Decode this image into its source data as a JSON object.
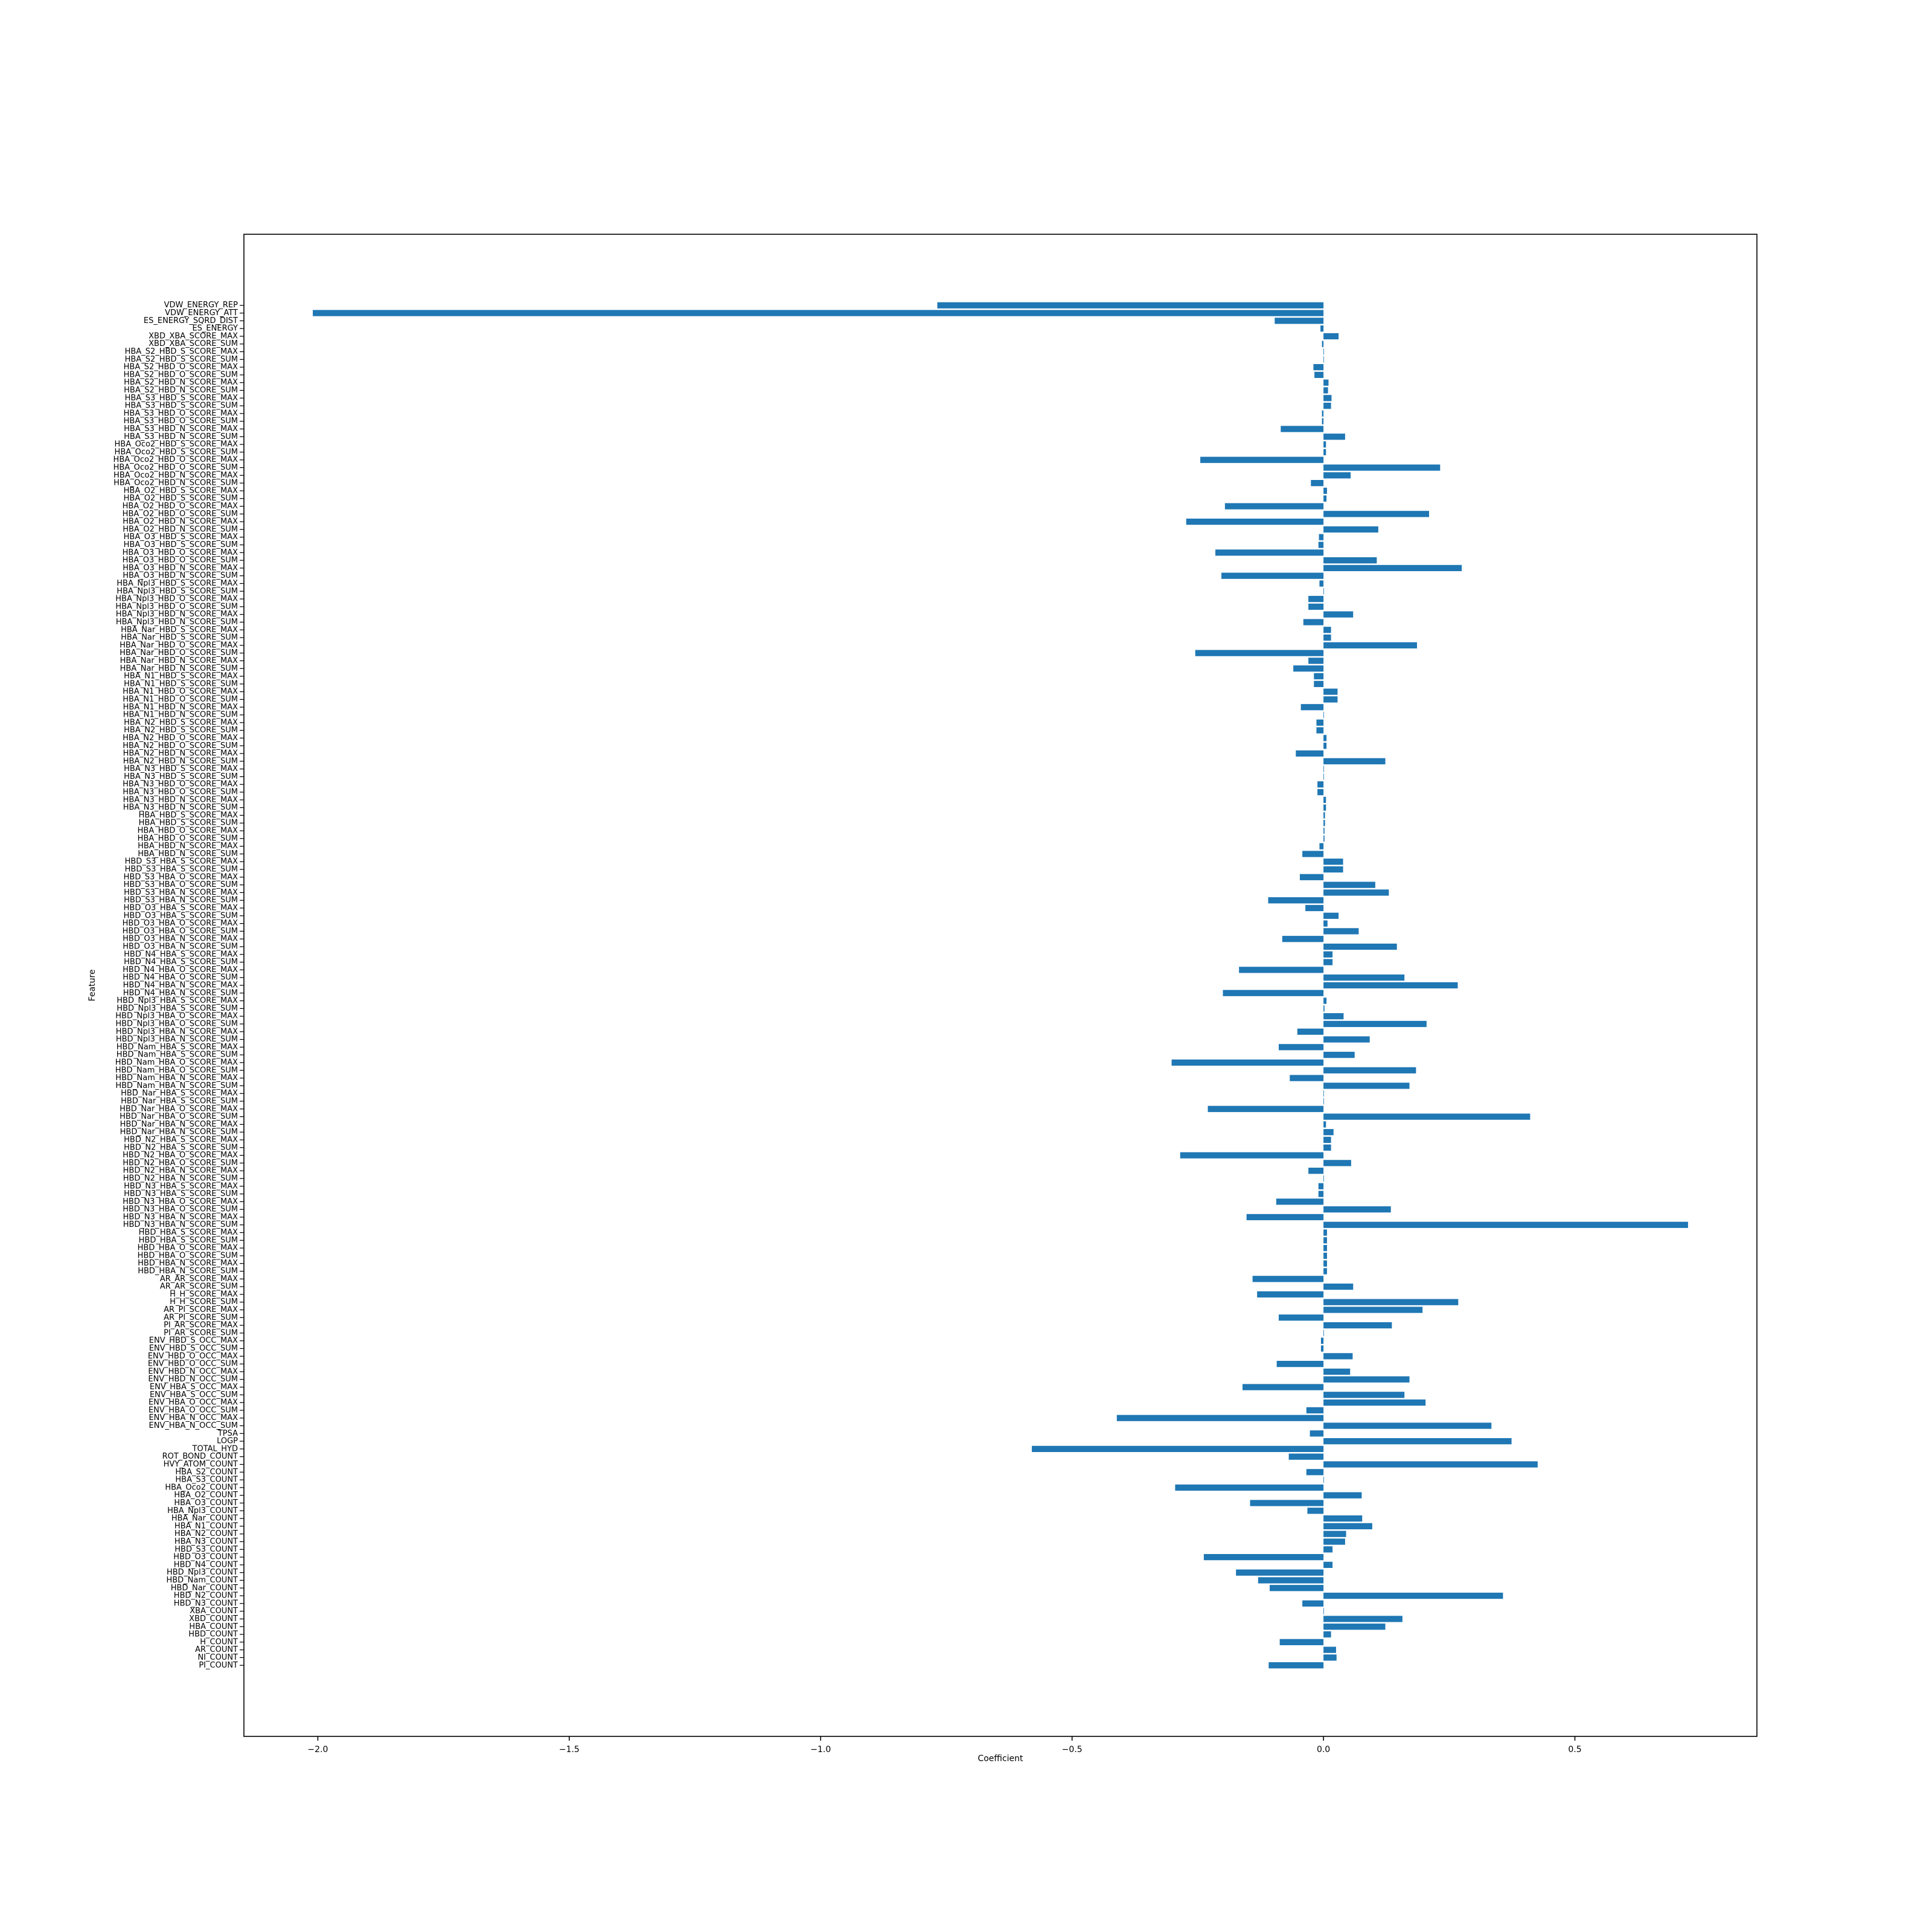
{
  "chart_data": {
    "type": "barh",
    "xlabel": "Coefficient",
    "ylabel": "Feature",
    "color": "#1f77b4",
    "xlim": [
      -2.147,
      0.862
    ],
    "xticks": [
      {
        "value": -2.0,
        "label": "−2.0"
      },
      {
        "value": -1.5,
        "label": "−1.5"
      },
      {
        "value": -1.0,
        "label": "−1.0"
      },
      {
        "value": -0.5,
        "label": "−0.5"
      },
      {
        "value": 0,
        "label": "0.0"
      },
      0.5
    ],
    "categories": [
      "VDW_ENERGY_REP",
      "VDW_ENERGY_ATT",
      "ES_ENERGY_SQRD_DIST",
      "ES_ENERGY",
      "XBD_XBA_SCORE_MAX",
      "XBD_XBA_SCORE_SUM",
      "HBA_S2_HBD_S_SCORE_MAX",
      "HBA_S2_HBD_S_SCORE_SUM",
      "HBA_S2_HBD_O_SCORE_MAX",
      "HBA_S2_HBD_O_SCORE_SUM",
      "HBA_S2_HBD_N_SCORE_MAX",
      "HBA_S2_HBD_N_SCORE_SUM",
      "HBA_S3_HBD_S_SCORE_MAX",
      "HBA_S3_HBD_S_SCORE_SUM",
      "HBA_S3_HBD_O_SCORE_MAX",
      "HBA_S3_HBD_O_SCORE_SUM",
      "HBA_S3_HBD_N_SCORE_MAX",
      "HBA_S3_HBD_N_SCORE_SUM",
      "HBA_Oco2_HBD_S_SCORE_MAX",
      "HBA_Oco2_HBD_S_SCORE_SUM",
      "HBA_Oco2_HBD_O_SCORE_MAX",
      "HBA_Oco2_HBD_O_SCORE_SUM",
      "HBA_Oco2_HBD_N_SCORE_MAX",
      "HBA_Oco2_HBD_N_SCORE_SUM",
      "HBA_O2_HBD_S_SCORE_MAX",
      "HBA_O2_HBD_S_SCORE_SUM",
      "HBA_O2_HBD_O_SCORE_MAX",
      "HBA_O2_HBD_O_SCORE_SUM",
      "HBA_O2_HBD_N_SCORE_MAX",
      "HBA_O2_HBD_N_SCORE_SUM",
      "HBA_O3_HBD_S_SCORE_MAX",
      "HBA_O3_HBD_S_SCORE_SUM",
      "HBA_O3_HBD_O_SCORE_MAX",
      "HBA_O3_HBD_O_SCORE_SUM",
      "HBA_O3_HBD_N_SCORE_MAX",
      "HBA_O3_HBD_N_SCORE_SUM",
      "HBA_Npl3_HBD_S_SCORE_MAX",
      "HBA_Npl3_HBD_S_SCORE_SUM",
      "HBA_Npl3_HBD_O_SCORE_MAX",
      "HBA_Npl3_HBD_O_SCORE_SUM",
      "HBA_Npl3_HBD_N_SCORE_MAX",
      "HBA_Npl3_HBD_N_SCORE_SUM",
      "HBA_Nar_HBD_S_SCORE_MAX",
      "HBA_Nar_HBD_S_SCORE_SUM",
      "HBA_Nar_HBD_O_SCORE_MAX",
      "HBA_Nar_HBD_O_SCORE_SUM",
      "HBA_Nar_HBD_N_SCORE_MAX",
      "HBA_Nar_HBD_N_SCORE_SUM",
      "HBA_N1_HBD_S_SCORE_MAX",
      "HBA_N1_HBD_S_SCORE_SUM",
      "HBA_N1_HBD_O_SCORE_MAX",
      "HBA_N1_HBD_O_SCORE_SUM",
      "HBA_N1_HBD_N_SCORE_MAX",
      "HBA_N1_HBD_N_SCORE_SUM",
      "HBA_N2_HBD_S_SCORE_MAX",
      "HBA_N2_HBD_S_SCORE_SUM",
      "HBA_N2_HBD_O_SCORE_MAX",
      "HBA_N2_HBD_O_SCORE_SUM",
      "HBA_N2_HBD_N_SCORE_MAX",
      "HBA_N2_HBD_N_SCORE_SUM",
      "HBA_N3_HBD_S_SCORE_MAX",
      "HBA_N3_HBD_S_SCORE_SUM",
      "HBA_N3_HBD_O_SCORE_MAX",
      "HBA_N3_HBD_O_SCORE_SUM",
      "HBA_N3_HBD_N_SCORE_MAX",
      "HBA_N3_HBD_N_SCORE_SUM",
      "HBA_HBD_S_SCORE_MAX",
      "HBA_HBD_S_SCORE_SUM",
      "HBA_HBD_O_SCORE_MAX",
      "HBA_HBD_O_SCORE_SUM",
      "HBA_HBD_N_SCORE_MAX",
      "HBA_HBD_N_SCORE_SUM",
      "HBD_S3_HBA_S_SCORE_MAX",
      "HBD_S3_HBA_S_SCORE_SUM",
      "HBD_S3_HBA_O_SCORE_MAX",
      "HBD_S3_HBA_O_SCORE_SUM",
      "HBD_S3_HBA_N_SCORE_MAX",
      "HBD_S3_HBA_N_SCORE_SUM",
      "HBD_O3_HBA_S_SCORE_MAX",
      "HBD_O3_HBA_S_SCORE_SUM",
      "HBD_O3_HBA_O_SCORE_MAX",
      "HBD_O3_HBA_O_SCORE_SUM",
      "HBD_O3_HBA_N_SCORE_MAX",
      "HBD_O3_HBA_N_SCORE_SUM",
      "HBD_N4_HBA_S_SCORE_MAX",
      "HBD_N4_HBA_S_SCORE_SUM",
      "HBD_N4_HBA_O_SCORE_MAX",
      "HBD_N4_HBA_O_SCORE_SUM",
      "HBD_N4_HBA_N_SCORE_MAX",
      "HBD_N4_HBA_N_SCORE_SUM",
      "HBD_Npl3_HBA_S_SCORE_MAX",
      "HBD_Npl3_HBA_S_SCORE_SUM",
      "HBD_Npl3_HBA_O_SCORE_MAX",
      "HBD_Npl3_HBA_O_SCORE_SUM",
      "HBD_Npl3_HBA_N_SCORE_MAX",
      "HBD_Npl3_HBA_N_SCORE_SUM",
      "HBD_Nam_HBA_S_SCORE_MAX",
      "HBD_Nam_HBA_S_SCORE_SUM",
      "HBD_Nam_HBA_O_SCORE_MAX",
      "HBD_Nam_HBA_O_SCORE_SUM",
      "HBD_Nam_HBA_N_SCORE_MAX",
      "HBD_Nam_HBA_N_SCORE_SUM",
      "HBD_Nar_HBA_S_SCORE_MAX",
      "HBD_Nar_HBA_S_SCORE_SUM",
      "HBD_Nar_HBA_O_SCORE_MAX",
      "HBD_Nar_HBA_O_SCORE_SUM",
      "HBD_Nar_HBA_N_SCORE_MAX",
      "HBD_Nar_HBA_N_SCORE_SUM",
      "HBD_N2_HBA_S_SCORE_MAX",
      "HBD_N2_HBA_S_SCORE_SUM",
      "HBD_N2_HBA_O_SCORE_MAX",
      "HBD_N2_HBA_O_SCORE_SUM",
      "HBD_N2_HBA_N_SCORE_MAX",
      "HBD_N2_HBA_N_SCORE_SUM",
      "HBD_N3_HBA_S_SCORE_MAX",
      "HBD_N3_HBA_S_SCORE_SUM",
      "HBD_N3_HBA_O_SCORE_MAX",
      "HBD_N3_HBA_O_SCORE_SUM",
      "HBD_N3_HBA_N_SCORE_MAX",
      "HBD_N3_HBA_N_SCORE_SUM",
      "HBD_HBA_S_SCORE_MAX",
      "HBD_HBA_S_SCORE_SUM",
      "HBD_HBA_O_SCORE_MAX",
      "HBD_HBA_O_SCORE_SUM",
      "HBD_HBA_N_SCORE_MAX",
      "HBD_HBA_N_SCORE_SUM",
      "AR_AR_SCORE_MAX",
      "AR_AR_SCORE_SUM",
      "H_H_SCORE_MAX",
      "H_H_SCORE_SUM",
      "AR_PI_SCORE_MAX",
      "AR_PI_SCORE_SUM",
      "PI_AR_SCORE_MAX",
      "PI_AR_SCORE_SUM",
      "ENV_HBD_S_OCC_MAX",
      "ENV_HBD_S_OCC_SUM",
      "ENV_HBD_O_OCC_MAX",
      "ENV_HBD_O_OCC_SUM",
      "ENV_HBD_N_OCC_MAX",
      "ENV_HBD_N_OCC_SUM",
      "ENV_HBA_S_OCC_MAX",
      "ENV_HBA_S_OCC_SUM",
      "ENV_HBA_O_OCC_MAX",
      "ENV_HBA_O_OCC_SUM",
      "ENV_HBA_N_OCC_MAX",
      "ENV_HBA_N_OCC_SUM",
      "TPSA",
      "LOGP",
      "TOTAL_HYD",
      "ROT_BOND_COUNT",
      "HVY_ATOM_COUNT",
      "HBA_S2_COUNT",
      "HBA_S3_COUNT",
      "HBA_Oco2_COUNT",
      "HBA_O2_COUNT",
      "HBA_O3_COUNT",
      "HBA_Npl3_COUNT",
      "HBA_Nar_COUNT",
      "HBA_N1_COUNT",
      "HBA_N2_COUNT",
      "HBA_N3_COUNT",
      "HBD_S3_COUNT",
      "HBD_O3_COUNT",
      "HBD_N4_COUNT",
      "HBD_Npl3_COUNT",
      "HBD_Nam_COUNT",
      "HBD_Nar_COUNT",
      "HBD_N2_COUNT",
      "HBD_N3_COUNT",
      "XBA_COUNT",
      "XBD_COUNT",
      "HBA_COUNT",
      "HBD_COUNT",
      "H_COUNT",
      "AR_COUNT",
      "NI_COUNT",
      "PI_COUNT"
    ],
    "values": [
      -0.768,
      -2.01,
      -0.097,
      -0.006,
      0.03,
      -0.003,
      0.001,
      0.001,
      -0.02,
      -0.018,
      0.01,
      0.009,
      0.016,
      0.015,
      -0.003,
      -0.003,
      -0.085,
      0.043,
      0.005,
      0.005,
      -0.245,
      0.232,
      0.054,
      -0.025,
      0.007,
      0.006,
      -0.196,
      0.21,
      -0.273,
      0.109,
      -0.009,
      -0.01,
      -0.215,
      0.106,
      0.275,
      -0.203,
      -0.008,
      0.001,
      -0.03,
      -0.03,
      0.059,
      -0.04,
      0.015,
      0.015,
      0.186,
      -0.255,
      -0.03,
      -0.06,
      -0.019,
      -0.019,
      0.028,
      0.028,
      -0.045,
      0.001,
      -0.014,
      -0.014,
      0.006,
      0.006,
      -0.055,
      0.123,
      0.001,
      0.001,
      -0.012,
      -0.012,
      0.005,
      0.005,
      0.003,
      0.003,
      0.002,
      0.002,
      -0.008,
      -0.042,
      0.039,
      0.039,
      -0.047,
      0.103,
      0.13,
      -0.11,
      -0.036,
      0.03,
      0.008,
      0.07,
      -0.082,
      0.146,
      0.018,
      0.018,
      -0.168,
      0.161,
      0.267,
      -0.2,
      0.006,
      0.002,
      0.04,
      0.205,
      -0.052,
      0.092,
      -0.089,
      0.062,
      -0.302,
      0.184,
      -0.067,
      0.171,
      0.001,
      0.001,
      -0.23,
      0.411,
      0.005,
      0.02,
      0.015,
      0.015,
      -0.285,
      0.055,
      -0.03,
      0.001,
      -0.01,
      -0.01,
      -0.094,
      0.134,
      -0.153,
      0.725,
      0.007,
      0.007,
      0.007,
      0.007,
      0.007,
      0.007,
      -0.141,
      0.059,
      -0.132,
      0.268,
      0.197,
      -0.089,
      0.136,
      0.001,
      -0.005,
      -0.005,
      0.058,
      -0.093,
      0.053,
      0.171,
      -0.161,
      0.161,
      0.203,
      -0.034,
      -0.411,
      0.334,
      -0.027,
      0.374,
      -0.58,
      -0.069,
      0.426,
      -0.034,
      0.001,
      -0.295,
      0.076,
      -0.146,
      -0.032,
      0.077,
      0.097,
      0.045,
      0.043,
      0.018,
      -0.238,
      0.018,
      -0.174,
      -0.13,
      -0.107,
      0.357,
      -0.042,
      0.001,
      0.157,
      0.123,
      0.015,
      -0.087,
      0.025,
      0.026,
      -0.109
    ]
  }
}
